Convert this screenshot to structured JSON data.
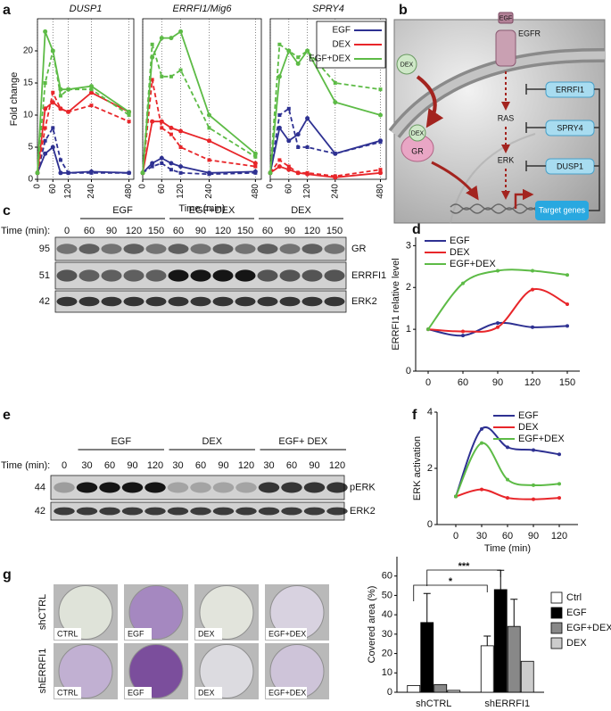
{
  "panels": [
    "a",
    "b",
    "c",
    "d",
    "e",
    "f",
    "g"
  ],
  "chart_data": [
    {
      "type": "line",
      "title": "DUSP1",
      "ylabel": "Fold change",
      "x": [
        0,
        30,
        60,
        90,
        120,
        240,
        480
      ],
      "xlim": [
        0,
        480
      ],
      "xticks": [
        0,
        60,
        120,
        240,
        480
      ],
      "ylim": [
        0,
        25
      ],
      "yticks": [
        0,
        5,
        10,
        15,
        20
      ],
      "grid": "x",
      "series": [
        {
          "color": "#2e3192",
          "values": [
            1,
            4,
            5,
            1,
            1,
            1.2,
            1
          ]
        },
        {
          "color": "#2e3192",
          "dashed": true,
          "values": [
            1,
            6,
            8,
            3,
            1,
            1,
            1
          ]
        },
        {
          "color": "#e8262a",
          "values": [
            1,
            11,
            12,
            11,
            10.5,
            13.5,
            10.5
          ]
        },
        {
          "color": "#e8262a",
          "dashed": true,
          "values": [
            1,
            8,
            13.5,
            11,
            10.5,
            11.5,
            9
          ]
        },
        {
          "color": "#5dbb46",
          "values": [
            1,
            23,
            20,
            14,
            14,
            14.5,
            10.5
          ]
        },
        {
          "color": "#5dbb46",
          "dashed": true,
          "values": [
            1,
            15,
            20,
            13,
            14,
            14,
            10
          ]
        }
      ]
    },
    {
      "type": "line",
      "title": "ERRFI1/Mig6",
      "xlabel": "Time (min)",
      "x": [
        0,
        30,
        60,
        90,
        120,
        240,
        480
      ],
      "xlim": [
        0,
        480
      ],
      "xticks": [
        0,
        60,
        120,
        240,
        480
      ],
      "ylim": [
        0,
        25
      ],
      "grid": "x",
      "series": [
        {
          "color": "#2e3192",
          "values": [
            1,
            2.5,
            3.3,
            2.5,
            2,
            1,
            1.2
          ]
        },
        {
          "color": "#2e3192",
          "dashed": true,
          "values": [
            1,
            2,
            2.5,
            1.5,
            1,
            0.8,
            1
          ]
        },
        {
          "color": "#e8262a",
          "values": [
            1,
            9,
            9,
            8,
            7.5,
            6,
            2.5
          ]
        },
        {
          "color": "#e8262a",
          "dashed": true,
          "values": [
            1,
            15.5,
            8,
            7,
            5,
            3,
            2
          ]
        },
        {
          "color": "#5dbb46",
          "values": [
            1,
            19,
            22,
            22,
            23,
            10,
            4
          ]
        },
        {
          "color": "#5dbb46",
          "dashed": true,
          "values": [
            1,
            21,
            16,
            16,
            17,
            8,
            3.5
          ]
        }
      ]
    },
    {
      "type": "line",
      "title": "SPRY4",
      "legend": "upper right",
      "x": [
        0,
        30,
        60,
        90,
        120,
        240,
        480
      ],
      "xlim": [
        0,
        480
      ],
      "xticks": [
        0,
        60,
        120,
        240,
        480
      ],
      "ylim": [
        0,
        25
      ],
      "grid": "x",
      "series": [
        {
          "name": "EGF",
          "color": "#2e3192",
          "values": [
            1,
            8,
            6,
            7,
            9.5,
            4,
            6
          ]
        },
        {
          "color": "#2e3192",
          "dashed": true,
          "values": [
            1,
            10,
            11,
            5,
            5,
            4,
            5.8
          ]
        },
        {
          "name": "DEX",
          "color": "#e8262a",
          "values": [
            1,
            2,
            1.5,
            1,
            0.8,
            0.3,
            1
          ]
        },
        {
          "color": "#e8262a",
          "dashed": true,
          "values": [
            1,
            3,
            2,
            1,
            1,
            0.5,
            1.5
          ]
        },
        {
          "name": "EGF+DEX",
          "color": "#5dbb46",
          "values": [
            1,
            16,
            20,
            18,
            20,
            12,
            10
          ]
        },
        {
          "color": "#5dbb46",
          "dashed": true,
          "values": [
            1,
            21,
            20,
            19,
            20,
            15,
            14
          ]
        }
      ]
    },
    {
      "type": "line",
      "smooth": true,
      "ylabel": "ERRFI1 relative level",
      "legend": "upper left",
      "categories": [
        0,
        60,
        90,
        120,
        150
      ],
      "ylim": [
        0,
        3.2
      ],
      "yticks": [
        0,
        1,
        2,
        3
      ],
      "series": [
        {
          "name": "EGF",
          "color": "#2e3192",
          "values": [
            1,
            0.85,
            1.15,
            1.05,
            1.08
          ]
        },
        {
          "name": "DEX",
          "color": "#e8262a",
          "values": [
            1,
            0.95,
            1.05,
            1.95,
            1.6
          ]
        },
        {
          "name": "EGF+DEX",
          "color": "#5dbb46",
          "values": [
            1,
            2.1,
            2.4,
            2.4,
            2.3
          ]
        }
      ]
    },
    {
      "type": "line",
      "smooth": true,
      "ylabel": "ERK activation",
      "xlabel": "Time (min)",
      "legend": "upper right",
      "categories": [
        0,
        30,
        60,
        90,
        120
      ],
      "ylim": [
        0,
        4
      ],
      "yticks": [
        0,
        2,
        4
      ],
      "series": [
        {
          "name": "EGF",
          "color": "#2e3192",
          "values": [
            1,
            3.4,
            2.75,
            2.65,
            2.5
          ]
        },
        {
          "name": "DEX",
          "color": "#e8262a",
          "values": [
            1,
            1.25,
            0.95,
            0.9,
            0.95
          ]
        },
        {
          "name": "EGF+DEX",
          "color": "#5dbb46",
          "values": [
            1,
            2.9,
            1.6,
            1.4,
            1.45
          ]
        }
      ]
    },
    {
      "type": "bar",
      "ylabel": "Covered area (%)",
      "legend": "right",
      "categories": [
        "shCTRL",
        "shERRFI1"
      ],
      "ylim": [
        0,
        70
      ],
      "yticks": [
        0,
        10,
        20,
        30,
        40,
        50,
        60
      ],
      "annotations": [
        "*",
        "***"
      ],
      "series": [
        {
          "name": "Ctrl",
          "color": "#ffffff",
          "values": [
            3.5,
            24
          ],
          "errors": [
            null,
            5
          ]
        },
        {
          "name": "EGF",
          "color": "#000000",
          "values": [
            36,
            53
          ],
          "errors": [
            15,
            10
          ]
        },
        {
          "name": "EGF+DEX",
          "color": "#888888",
          "values": [
            4,
            34
          ],
          "errors": [
            null,
            14
          ]
        },
        {
          "name": "DEX",
          "color": "#cccccc",
          "values": [
            1,
            16
          ],
          "errors": [
            null,
            null
          ]
        }
      ]
    }
  ],
  "diagram": {
    "ligands": [
      "DEX",
      "EGF"
    ],
    "receptor": "EGFR",
    "pathway": [
      "RAS",
      "ERK"
    ],
    "feedback": [
      "ERRFI1",
      "SPRY4",
      "DUSP1"
    ],
    "complex": {
      "ligand": "DEX",
      "receptor": "GR"
    },
    "target": "Target genes"
  },
  "blot_c": {
    "groups": [
      "EGF",
      "EGF+DEX",
      "DEX"
    ],
    "time_label": "Time (min):",
    "times": [
      0,
      60,
      90,
      120,
      150,
      60,
      90,
      120,
      150,
      60,
      90,
      120,
      150
    ],
    "mw": [
      95,
      51,
      42
    ],
    "rows": [
      "GR",
      "ERRFI1",
      "ERK2"
    ]
  },
  "blot_e": {
    "groups": [
      "EGF",
      "DEX",
      "EGF+ DEX"
    ],
    "time_label": "Time (min):",
    "times": [
      0,
      30,
      60,
      90,
      120,
      30,
      60,
      90,
      120,
      30,
      60,
      90,
      120
    ],
    "mw": [
      44,
      42
    ],
    "rows": [
      "pERK",
      "ERK2"
    ]
  },
  "images": {
    "rows": [
      "shCTRL",
      "shERRFI1"
    ],
    "captions": [
      [
        "CTRL",
        "EGF",
        "DEX",
        "EGF+DEX"
      ],
      [
        "CTRL",
        "EGF",
        "DEX",
        "EGF+DEX"
      ]
    ]
  }
}
